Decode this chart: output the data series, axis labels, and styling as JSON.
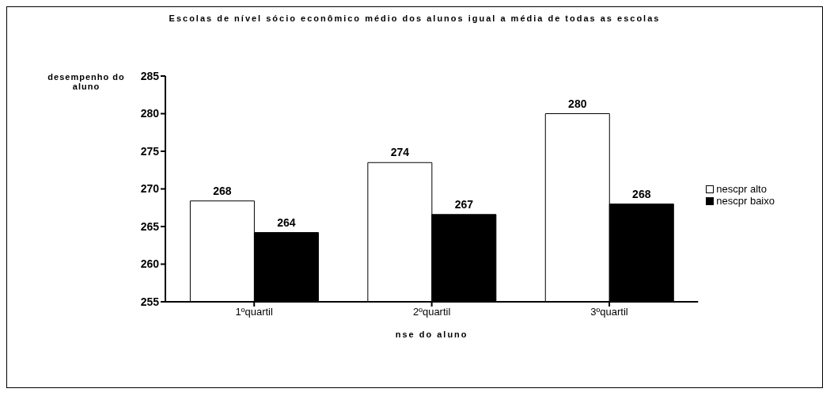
{
  "chart_data": {
    "type": "bar",
    "title": "Escolas de nível sócio econômico médio dos alunos igual a média de todas as escolas",
    "xlabel": "nse do aluno",
    "ylabel": "desempenho do aluno",
    "categories": [
      "1ºquartil",
      "2ºquartil",
      "3ºquartil"
    ],
    "series": [
      {
        "name": "nescpr alto",
        "color": "#ffffff",
        "values": [
          268.4,
          273.5,
          280
        ],
        "value_labels": [
          "268",
          "274",
          "280"
        ]
      },
      {
        "name": "nescpr baixo",
        "color": "#000000",
        "values": [
          264.2,
          266.6,
          268
        ],
        "value_labels": [
          "264",
          "267",
          "268"
        ]
      }
    ],
    "ylim": [
      255,
      285
    ],
    "yticks": [
      255,
      260,
      265,
      270,
      275,
      280,
      285
    ],
    "grid": false,
    "legend": "right"
  }
}
